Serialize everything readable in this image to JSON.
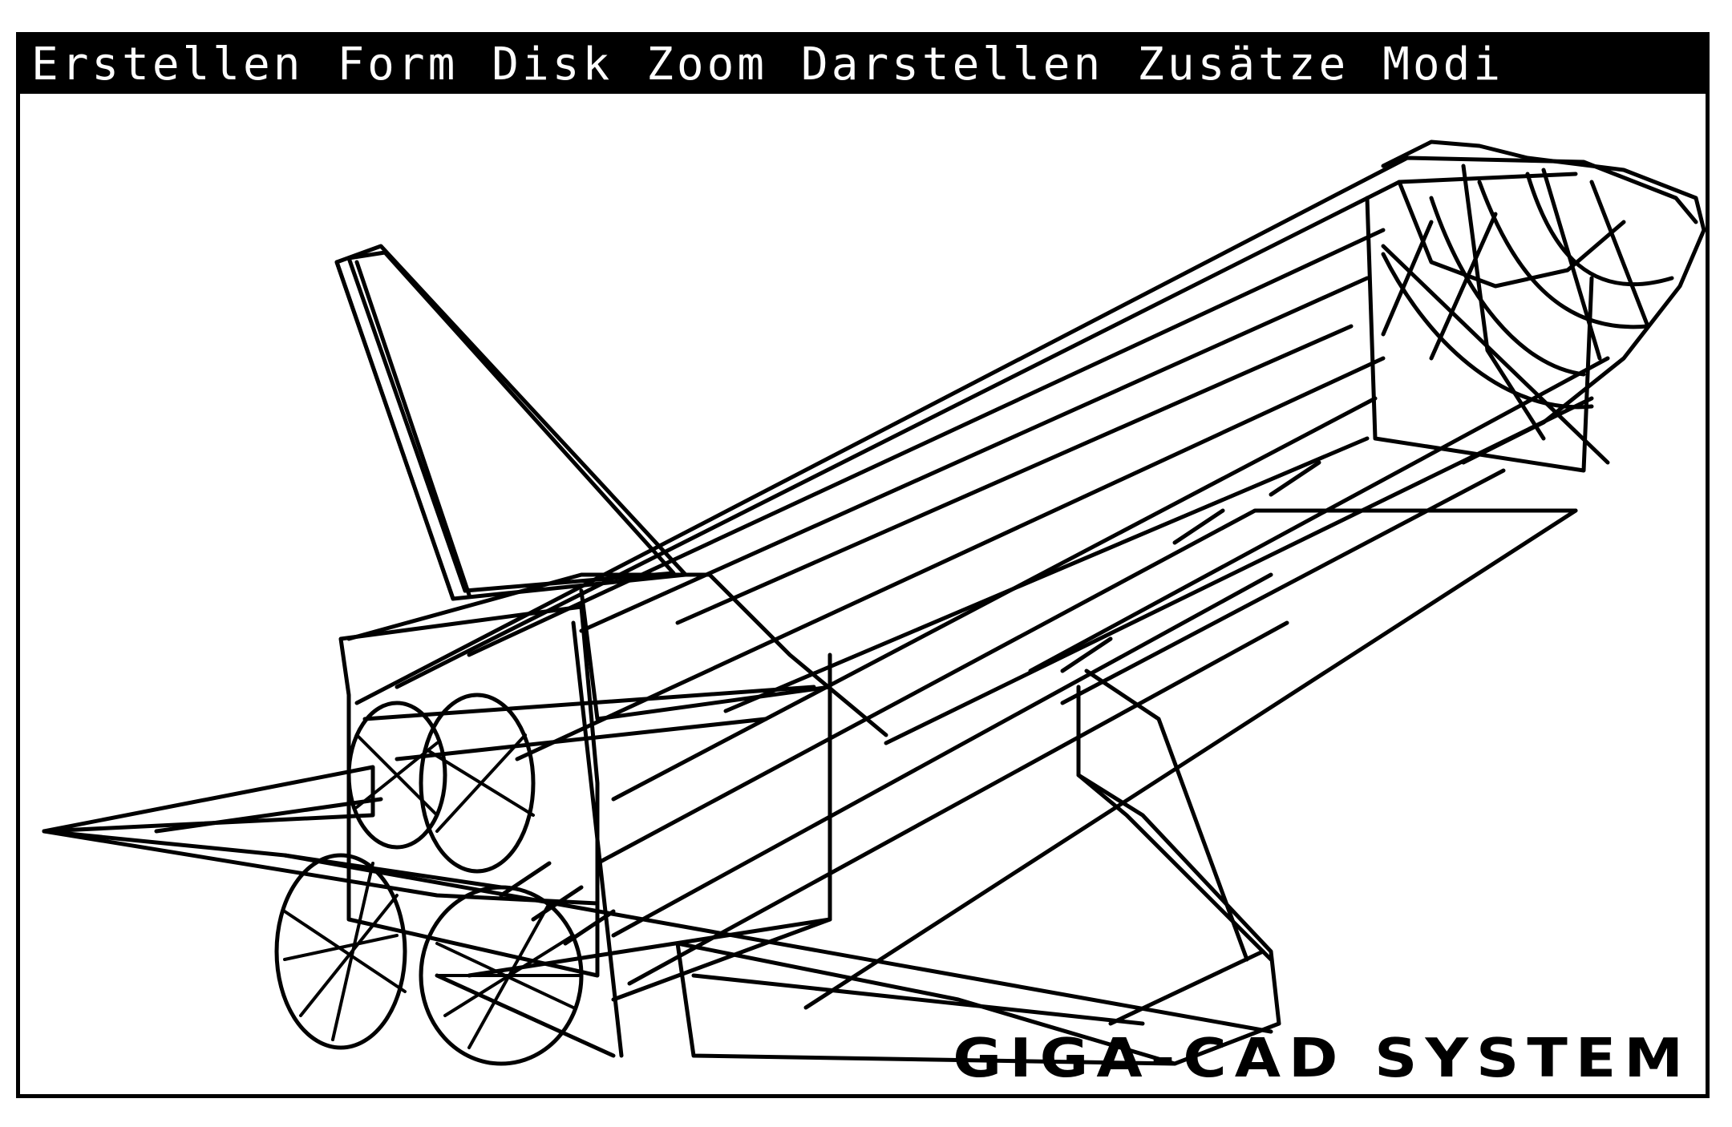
{
  "menu": {
    "items": [
      "Erstellen",
      "Form",
      "Disk",
      "Zoom",
      "Darstellen",
      "Zusätze",
      "Modi"
    ]
  },
  "viewport": {
    "icon": "space-shuttle-wireframe"
  },
  "branding": {
    "label": "GIGA-CAD SYSTEM"
  },
  "colors": {
    "menu_background": "#000000",
    "menu_text": "#ffffff",
    "drawing_stroke": "#000000",
    "background": "#ffffff"
  }
}
